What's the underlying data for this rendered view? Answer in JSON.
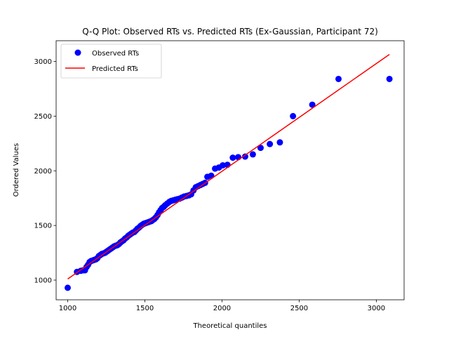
{
  "chart_data": {
    "type": "scatter",
    "title": "Q-Q Plot: Observed RTs vs. Predicted RTs (Ex-Gaussian, Participant 72)",
    "xlabel": "Theoretical quantiles",
    "ylabel": "Ordered Values",
    "xlim": [
      925,
      3180
    ],
    "ylim": [
      820,
      3190
    ],
    "xticks": [
      1000,
      1500,
      2000,
      2500,
      3000
    ],
    "yticks": [
      1000,
      1500,
      2000,
      2500,
      3000
    ],
    "grid": false,
    "legend_position": "top-left",
    "series": [
      {
        "name": "Observed RTs",
        "kind": "scatter",
        "color": "#0000ff",
        "x": [
          1000,
          1060,
          1085,
          1100,
          1112,
          1122,
          1132,
          1142,
          1152,
          1162,
          1172,
          1182,
          1192,
          1202,
          1212,
          1222,
          1232,
          1242,
          1252,
          1262,
          1272,
          1282,
          1292,
          1302,
          1312,
          1322,
          1332,
          1342,
          1352,
          1362,
          1372,
          1382,
          1392,
          1402,
          1412,
          1422,
          1432,
          1442,
          1452,
          1462,
          1472,
          1482,
          1492,
          1502,
          1512,
          1522,
          1532,
          1542,
          1552,
          1562,
          1572,
          1582,
          1592,
          1602,
          1612,
          1622,
          1632,
          1645,
          1658,
          1671,
          1684,
          1697,
          1710,
          1725,
          1740,
          1755,
          1770,
          1785,
          1800,
          1815,
          1830,
          1845,
          1860,
          1875,
          1890,
          1905,
          1930,
          1955,
          1980,
          2005,
          2035,
          2070,
          2105,
          2150,
          2200,
          2250,
          2310,
          2375,
          2460,
          2585,
          2755,
          3085
        ],
        "y": [
          930,
          1075,
          1085,
          1090,
          1090,
          1120,
          1140,
          1165,
          1175,
          1180,
          1185,
          1190,
          1200,
          1220,
          1230,
          1240,
          1245,
          1250,
          1260,
          1270,
          1280,
          1290,
          1300,
          1310,
          1315,
          1320,
          1330,
          1345,
          1355,
          1365,
          1380,
          1390,
          1405,
          1415,
          1425,
          1435,
          1440,
          1455,
          1470,
          1480,
          1495,
          1505,
          1515,
          1520,
          1525,
          1530,
          1535,
          1540,
          1550,
          1560,
          1575,
          1595,
          1620,
          1640,
          1660,
          1670,
          1685,
          1700,
          1715,
          1725,
          1730,
          1735,
          1740,
          1745,
          1755,
          1765,
          1770,
          1775,
          1785,
          1820,
          1850,
          1860,
          1870,
          1880,
          1890,
          1945,
          1955,
          2020,
          2030,
          2050,
          2055,
          2120,
          2125,
          2130,
          2150,
          2210,
          2245,
          2260,
          2500,
          2605,
          2840,
          2840
        ]
      },
      {
        "name": "Predicted RTs",
        "kind": "line",
        "color": "#ff0000",
        "x": [
          1000,
          3085
        ],
        "y": [
          1010,
          3065
        ]
      }
    ]
  }
}
